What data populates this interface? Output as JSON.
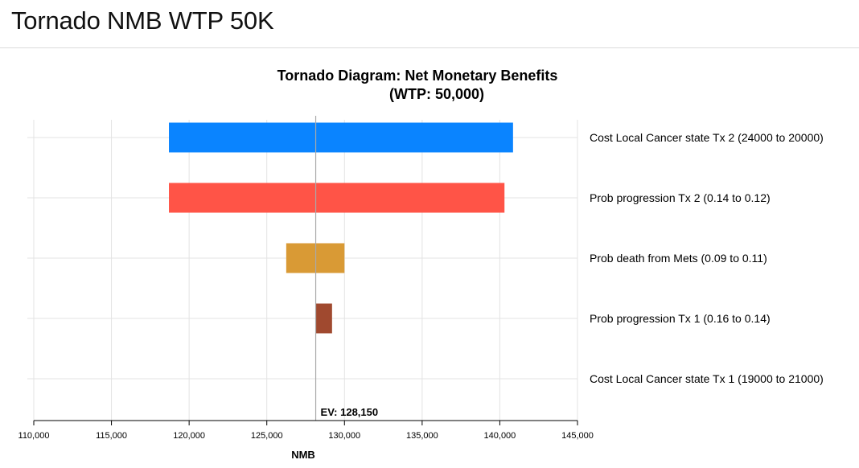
{
  "page": {
    "title": "Tornado NMB WTP 50K"
  },
  "chart_data": {
    "type": "bar",
    "subtype": "tornado",
    "title": "Tornado Diagram: Net Monetary Benefits",
    "subtitle": "(WTP: 50,000)",
    "xlabel": "NMB",
    "xlim": [
      110000,
      145000
    ],
    "xticks": [
      110000,
      115000,
      120000,
      125000,
      130000,
      135000,
      140000,
      145000
    ],
    "tick_labels": [
      "110,000",
      "115,000",
      "120,000",
      "125,000",
      "130,000",
      "135,000",
      "140,000",
      "145,000"
    ],
    "grid": true,
    "ev": 128150,
    "ev_label": "EV: 128,150",
    "bars": [
      {
        "label": "Cost Local Cancer state Tx 2 (24000 to 20000)",
        "low": 118700,
        "high": 140850,
        "color": "#0a84ff"
      },
      {
        "label": "Prob progression Tx 2 (0.14 to 0.12)",
        "low": 118700,
        "high": 140300,
        "color": "#ff5447"
      },
      {
        "label": "Prob death from Mets (0.09 to 0.11)",
        "low": 126250,
        "high": 130000,
        "color": "#d99a35"
      },
      {
        "label": "Prob progression Tx 1 (0.16 to 0.14)",
        "low": 128150,
        "high": 129200,
        "color": "#a0492f"
      },
      {
        "label": "Cost Local Cancer state Tx 1 (19000 to 21000)",
        "low": 128150,
        "high": 128150,
        "color": "#8e8e8e"
      }
    ]
  }
}
